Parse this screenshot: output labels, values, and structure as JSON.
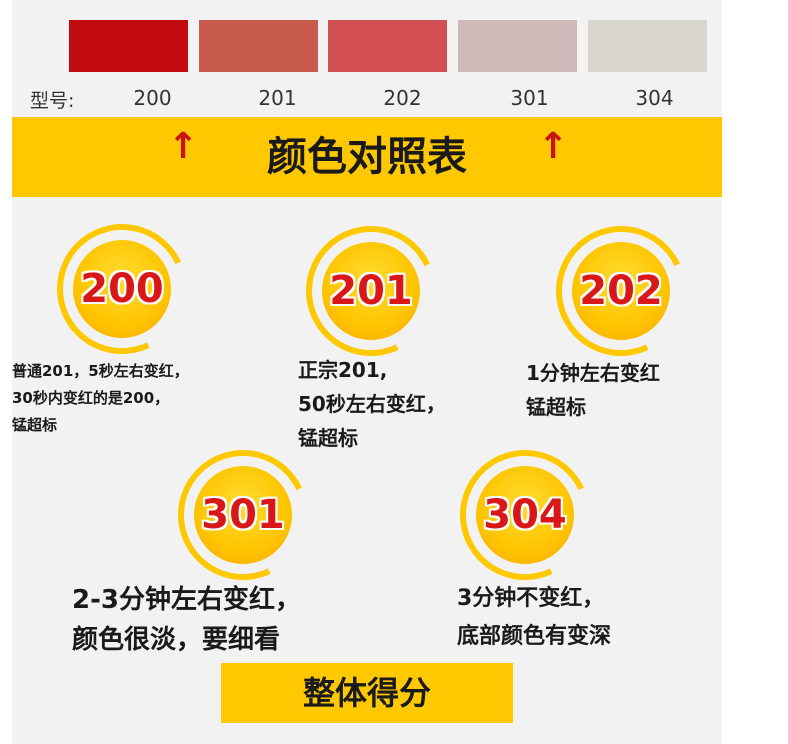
{
  "swatches": [
    {
      "code": "200",
      "color": "#c10b10"
    },
    {
      "code": "201",
      "color": "#c95b4e"
    },
    {
      "code": "202",
      "color": "#d24f54"
    },
    {
      "code": "301",
      "color": "#d0b9b9"
    },
    {
      "code": "304",
      "color": "#d7d5cd"
    }
  ],
  "model_label": "型号:",
  "title": "颜色对照表",
  "arrow_symbol": "↑",
  "badges": [
    {
      "code": "200",
      "lines": [
        "普通201，5秒左右变红，",
        "30秒内变红的是200，",
        "锰超标"
      ]
    },
    {
      "code": "201",
      "lines": [
        "正宗201,",
        "50秒左右变红，",
        "锰超标"
      ]
    },
    {
      "code": "202",
      "lines": [
        "1分钟左右变红",
        "锰超标"
      ]
    },
    {
      "code": "301",
      "lines": [
        "2-3分钟左右变红，",
        "颜色很淡，要细看"
      ]
    },
    {
      "code": "304",
      "lines": [
        "3分钟不变红，",
        "底部颜色有变深"
      ]
    }
  ],
  "bottom_label": "整体得分",
  "colors": {
    "accent_yellow": "#ffc800",
    "badge_number_red": "#d81818",
    "arrow_red": "#cc1111"
  }
}
